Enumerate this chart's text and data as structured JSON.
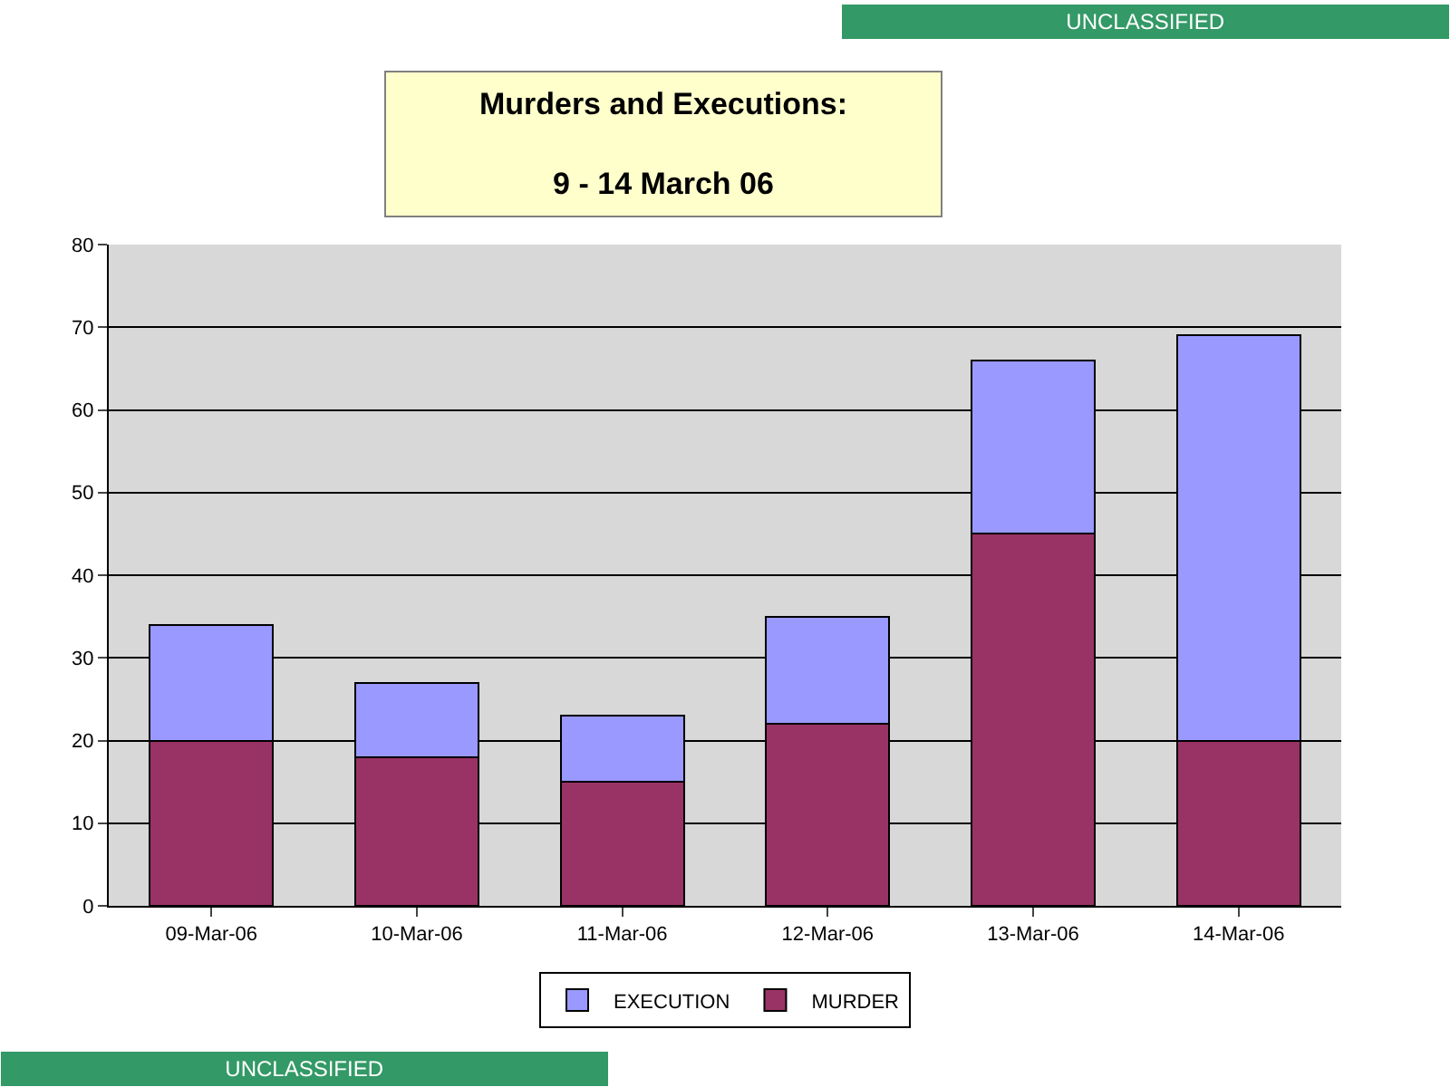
{
  "chart_data": {
    "type": "bar",
    "title": "Murders and Executions:",
    "subtitle": "9 - 14 March 06",
    "categories": [
      "09-Mar-06",
      "10-Mar-06",
      "11-Mar-06",
      "12-Mar-06",
      "13-Mar-06",
      "14-Mar-06"
    ],
    "series": [
      {
        "name": "MURDER",
        "color": "#993366",
        "values": [
          20,
          18,
          15,
          22,
          45,
          20
        ]
      },
      {
        "name": "EXECUTION",
        "color": "#9999ff",
        "values": [
          14,
          9,
          8,
          13,
          21,
          49
        ]
      }
    ],
    "stacked": true,
    "ylim": [
      0,
      80
    ],
    "yticks": [
      0,
      10,
      20,
      30,
      40,
      50,
      60,
      70,
      80
    ],
    "grid": "y",
    "legend": "bottom",
    "annotations": [
      "UNCLASSIFIED",
      "UNCLASSIFIED"
    ]
  }
}
